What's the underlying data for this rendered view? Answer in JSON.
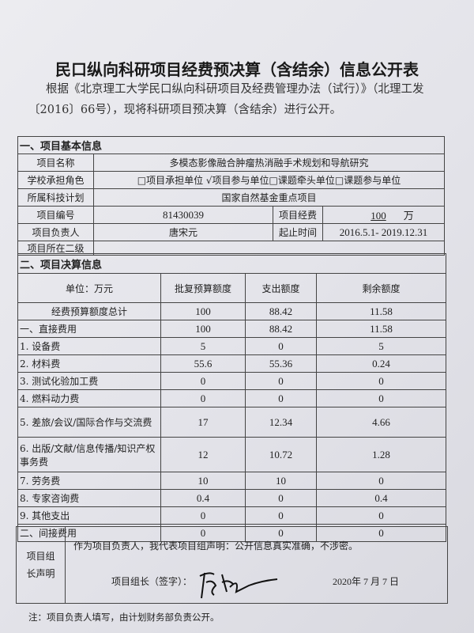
{
  "title": "民口纵向科研项目经费预决算（含结余）信息公开表",
  "intro": "根据《北京理工大学民口纵向科研项目及经费管理办法（试行）》（北理工发〔2016〕66号），现将科研项目预决算（含结余）进行公开。",
  "basic": {
    "section": "一、项目基本信息",
    "name_label": "项目名称",
    "name": "多模态影像融合肿瘤热消融手术规划和导航研究",
    "role_label": "学校承担角色",
    "role": "□项目承担单位 √项目参与单位□课题牵头单位□课题参与单位",
    "plan_label": "所属科技计划",
    "plan": "国家自然基金重点项目",
    "id_label": "项目编号",
    "id": "81430039",
    "fund_label": "项目经费",
    "fund": "100",
    "fund_unit": "万",
    "leader_label": "项目负责人",
    "leader": "唐宋元",
    "period_label": "起止时间",
    "period": "2016.5.1- 2019.12.31",
    "dept_label": "项目所在二级",
    "dept": ""
  },
  "budget": {
    "section": "二、项目决算信息",
    "headers": [
      "单位：万元",
      "批复预算额度",
      "支出额度",
      "剩余额度"
    ],
    "rows": [
      [
        "经费预算额度总计",
        "100",
        "88.42",
        "11.58"
      ],
      [
        "一、直接费用",
        "100",
        "88.42",
        "11.58"
      ],
      [
        "1. 设备费",
        "5",
        "0",
        "5"
      ],
      [
        "2. 材料费",
        "55.6",
        "55.36",
        "0.24"
      ],
      [
        "3. 测试化验加工费",
        "0",
        "0",
        "0"
      ],
      [
        "4. 燃料动力费",
        "0",
        "0",
        "0"
      ],
      [
        "5. 差旅/会议/国际合作与交流费",
        "17",
        "12.34",
        "4.66"
      ],
      [
        "6. 出版/文献/信息传播/知识产权事务费",
        "12",
        "10.72",
        "1.28"
      ],
      [
        "7. 劳务费",
        "10",
        "10",
        "0"
      ],
      [
        "8. 专家咨询费",
        "0.4",
        "0",
        "0.4"
      ],
      [
        "9. 其他支出",
        "0",
        "0",
        "0"
      ],
      [
        "二、间接费用",
        "0",
        "0",
        "0"
      ]
    ]
  },
  "statement": {
    "label": "项目组长声明",
    "text": "作为项目负责人，我代表项目组声明：公开信息真实准确，不涉密。",
    "sign_label": "项目组长（签字）：",
    "signature": "唐宋元",
    "date": "2020年 7 月 7 日"
  },
  "note": "注：项目负责人填写，由计划财务部负责公开。"
}
